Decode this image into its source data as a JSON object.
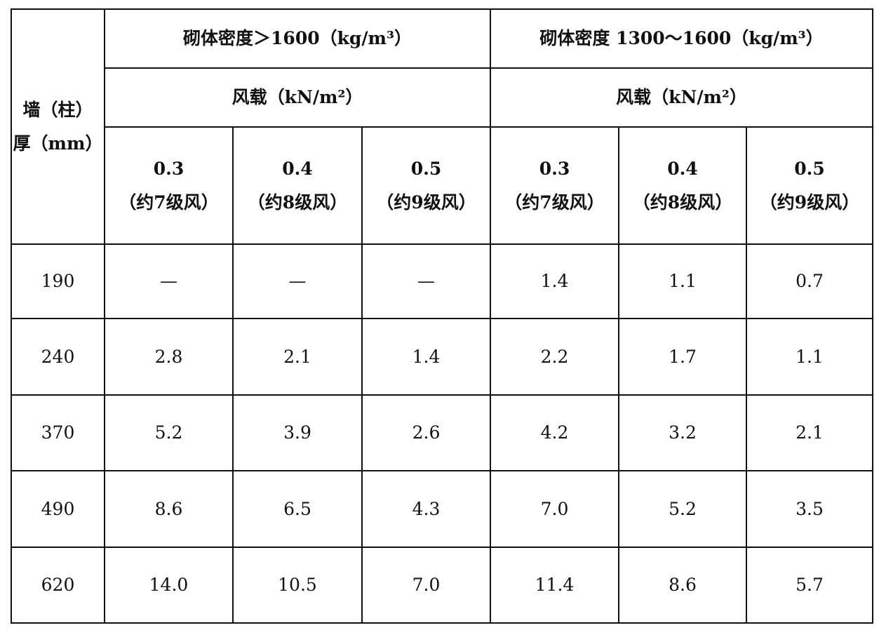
{
  "table": {
    "corner": [
      "墙（柱）",
      "厚（mm）"
    ],
    "groups": [
      {
        "title": "砌体密度＞1600（kg/m³）",
        "subtitle": "风载（kN/m²）",
        "columns": [
          {
            "load": "0.3",
            "note": "（约7级风）"
          },
          {
            "load": "0.4",
            "note": "（约8级风）"
          },
          {
            "load": "0.5",
            "note": "（约9级风）"
          }
        ]
      },
      {
        "title": "砌体密度 1300～1600（kg/m³）",
        "subtitle": "风载（kN/m²）",
        "columns": [
          {
            "load": "0.3",
            "note": "（约7级风）"
          },
          {
            "load": "0.4",
            "note": "（约8级风）"
          },
          {
            "load": "0.5",
            "note": "（约9级风）"
          }
        ]
      }
    ],
    "rows": [
      {
        "thickness": "190",
        "values": [
          "—",
          "—",
          "—",
          "1.4",
          "1.1",
          "0.7"
        ]
      },
      {
        "thickness": "240",
        "values": [
          "2.8",
          "2.1",
          "1.4",
          "2.2",
          "1.7",
          "1.1"
        ]
      },
      {
        "thickness": "370",
        "values": [
          "5.2",
          "3.9",
          "2.6",
          "4.2",
          "3.2",
          "2.1"
        ]
      },
      {
        "thickness": "490",
        "values": [
          "8.6",
          "6.5",
          "4.3",
          "7.0",
          "5.2",
          "3.5"
        ]
      },
      {
        "thickness": "620",
        "values": [
          "14.0",
          "10.5",
          "7.0",
          "11.4",
          "8.6",
          "5.7"
        ]
      }
    ]
  }
}
